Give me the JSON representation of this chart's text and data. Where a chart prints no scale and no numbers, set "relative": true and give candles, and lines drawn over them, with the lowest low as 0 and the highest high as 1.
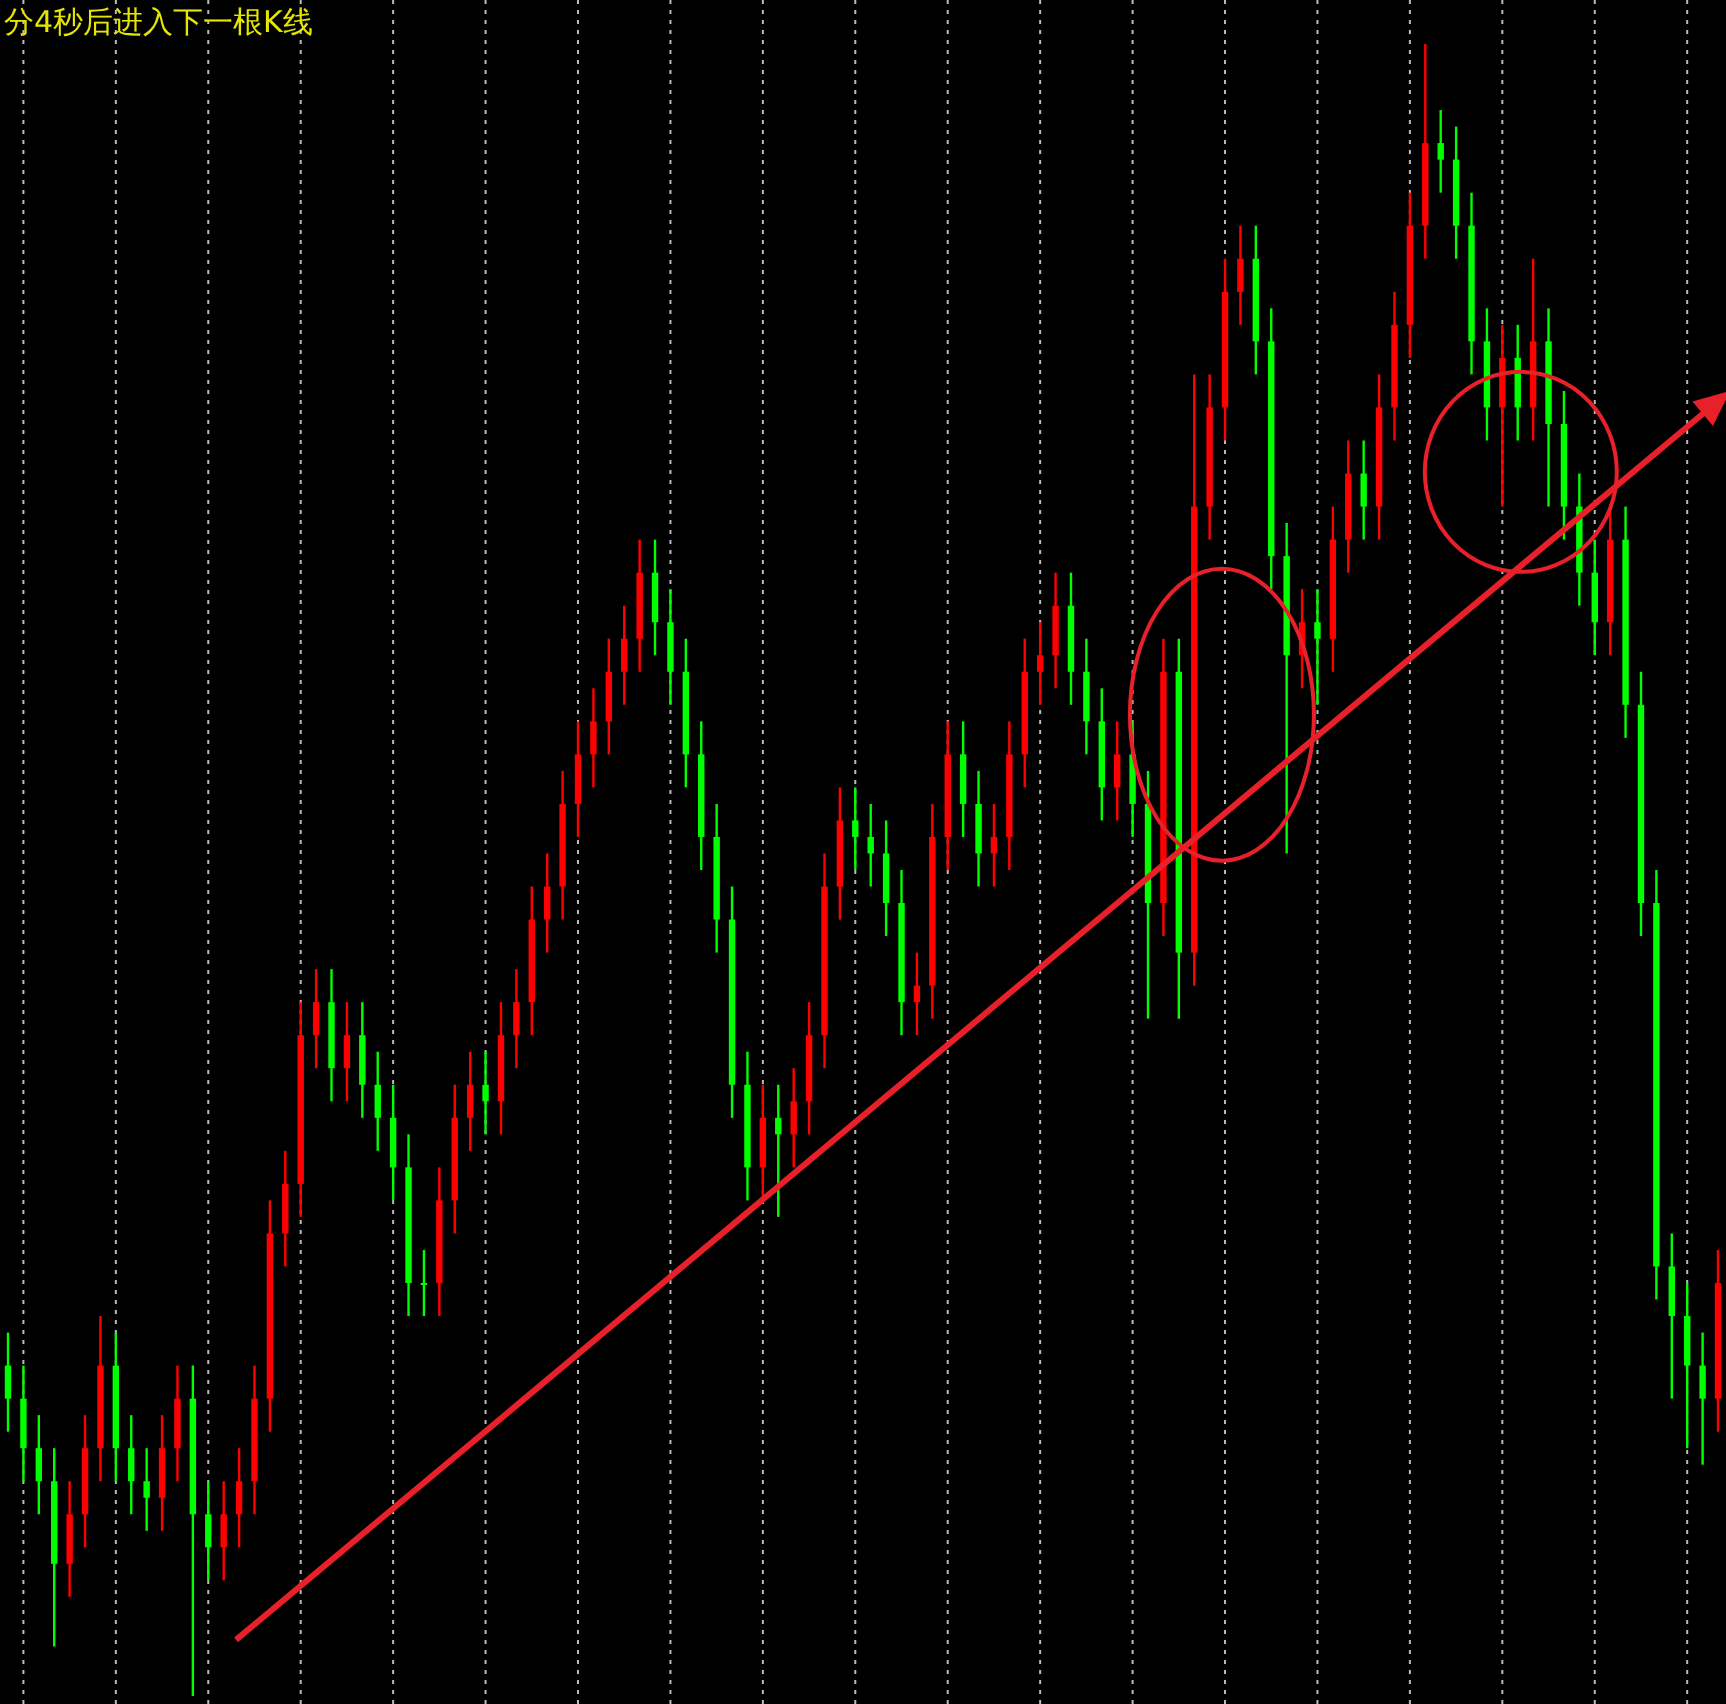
{
  "chart_data": {
    "type": "candlestick",
    "relative": true,
    "grid": "x",
    "annotations": [
      "分4秒后进入下一根K线"
    ],
    "categories": [
      null,
      null,
      null,
      null,
      null,
      null,
      null,
      null,
      null,
      null,
      null,
      null,
      null,
      null,
      null,
      null,
      null,
      null,
      null,
      null,
      null,
      null,
      null,
      null,
      null,
      null,
      null,
      null,
      null,
      null,
      null,
      null,
      null,
      null,
      null,
      null,
      null,
      null,
      null,
      null,
      null,
      null,
      null,
      null,
      null,
      null,
      null,
      null,
      null,
      null,
      null,
      null,
      null,
      null,
      null,
      null,
      null,
      null,
      null,
      null,
      null,
      null,
      null,
      null,
      null,
      null,
      null,
      null,
      null,
      null,
      null,
      null,
      null,
      null,
      null,
      null,
      null,
      null,
      null,
      null,
      null,
      null,
      null,
      null,
      null,
      null,
      null,
      null,
      null,
      null,
      null,
      null,
      null,
      null,
      null,
      null,
      null,
      null,
      null,
      null,
      null,
      null,
      null,
      null,
      null,
      null,
      null,
      null,
      null,
      null,
      null,
      null
    ],
    "ohlc": [
      [
        0.2,
        0.22,
        0.16,
        0.18
      ],
      [
        0.18,
        0.2,
        0.13,
        0.15
      ],
      [
        0.15,
        0.17,
        0.11,
        0.13
      ],
      [
        0.13,
        0.15,
        0.03,
        0.08
      ],
      [
        0.08,
        0.13,
        0.06,
        0.11
      ],
      [
        0.11,
        0.17,
        0.09,
        0.15
      ],
      [
        0.15,
        0.23,
        0.13,
        0.2
      ],
      [
        0.2,
        0.22,
        0.13,
        0.15
      ],
      [
        0.15,
        0.17,
        0.11,
        0.13
      ],
      [
        0.13,
        0.15,
        0.1,
        0.12
      ],
      [
        0.12,
        0.17,
        0.1,
        0.15
      ],
      [
        0.15,
        0.2,
        0.13,
        0.18
      ],
      [
        0.18,
        0.2,
        0.0,
        0.11
      ],
      [
        0.11,
        0.13,
        0.07,
        0.09
      ],
      [
        0.09,
        0.13,
        0.07,
        0.11
      ],
      [
        0.11,
        0.15,
        0.09,
        0.13
      ],
      [
        0.13,
        0.2,
        0.11,
        0.18
      ],
      [
        0.18,
        0.3,
        0.16,
        0.28
      ],
      [
        0.28,
        0.33,
        0.26,
        0.31
      ],
      [
        0.31,
        0.42,
        0.29,
        0.4
      ],
      [
        0.4,
        0.44,
        0.38,
        0.42
      ],
      [
        0.42,
        0.44,
        0.36,
        0.38
      ],
      [
        0.38,
        0.42,
        0.36,
        0.4
      ],
      [
        0.4,
        0.42,
        0.35,
        0.37
      ],
      [
        0.37,
        0.39,
        0.33,
        0.35
      ],
      [
        0.35,
        0.37,
        0.3,
        0.32
      ],
      [
        0.32,
        0.34,
        0.23,
        0.25
      ],
      [
        0.25,
        0.27,
        0.23,
        0.25
      ],
      [
        0.25,
        0.32,
        0.23,
        0.3
      ],
      [
        0.3,
        0.37,
        0.28,
        0.35
      ],
      [
        0.35,
        0.39,
        0.33,
        0.37
      ],
      [
        0.37,
        0.39,
        0.34,
        0.36
      ],
      [
        0.36,
        0.42,
        0.34,
        0.4
      ],
      [
        0.4,
        0.44,
        0.38,
        0.42
      ],
      [
        0.42,
        0.49,
        0.4,
        0.47
      ],
      [
        0.47,
        0.51,
        0.45,
        0.49
      ],
      [
        0.49,
        0.56,
        0.47,
        0.54
      ],
      [
        0.54,
        0.59,
        0.52,
        0.57
      ],
      [
        0.57,
        0.61,
        0.55,
        0.59
      ],
      [
        0.59,
        0.64,
        0.57,
        0.62
      ],
      [
        0.62,
        0.66,
        0.6,
        0.64
      ],
      [
        0.64,
        0.7,
        0.62,
        0.68
      ],
      [
        0.68,
        0.7,
        0.63,
        0.65
      ],
      [
        0.65,
        0.67,
        0.6,
        0.62
      ],
      [
        0.62,
        0.64,
        0.55,
        0.57
      ],
      [
        0.57,
        0.59,
        0.5,
        0.52
      ],
      [
        0.52,
        0.54,
        0.45,
        0.47
      ],
      [
        0.47,
        0.49,
        0.35,
        0.37
      ],
      [
        0.37,
        0.39,
        0.3,
        0.32
      ],
      [
        0.32,
        0.37,
        0.3,
        0.35
      ],
      [
        0.35,
        0.37,
        0.29,
        0.34
      ],
      [
        0.34,
        0.38,
        0.32,
        0.36
      ],
      [
        0.36,
        0.42,
        0.34,
        0.4
      ],
      [
        0.4,
        0.51,
        0.38,
        0.49
      ],
      [
        0.49,
        0.55,
        0.47,
        0.53
      ],
      [
        0.53,
        0.55,
        0.5,
        0.52
      ],
      [
        0.52,
        0.54,
        0.49,
        0.51
      ],
      [
        0.51,
        0.53,
        0.46,
        0.48
      ],
      [
        0.48,
        0.5,
        0.4,
        0.42
      ],
      [
        0.42,
        0.45,
        0.4,
        0.43
      ],
      [
        0.43,
        0.54,
        0.41,
        0.52
      ],
      [
        0.52,
        0.59,
        0.5,
        0.57
      ],
      [
        0.57,
        0.59,
        0.52,
        0.54
      ],
      [
        0.54,
        0.56,
        0.49,
        0.51
      ],
      [
        0.51,
        0.54,
        0.49,
        0.52
      ],
      [
        0.52,
        0.59,
        0.5,
        0.57
      ],
      [
        0.57,
        0.64,
        0.55,
        0.62
      ],
      [
        0.62,
        0.65,
        0.6,
        0.63
      ],
      [
        0.63,
        0.68,
        0.61,
        0.66
      ],
      [
        0.66,
        0.68,
        0.6,
        0.62
      ],
      [
        0.62,
        0.64,
        0.57,
        0.59
      ],
      [
        0.59,
        0.61,
        0.53,
        0.55
      ],
      [
        0.55,
        0.59,
        0.53,
        0.57
      ],
      [
        0.57,
        0.59,
        0.52,
        0.54
      ],
      [
        0.54,
        0.56,
        0.41,
        0.48
      ],
      [
        0.48,
        0.64,
        0.46,
        0.62
      ],
      [
        0.62,
        0.64,
        0.41,
        0.45
      ],
      [
        0.45,
        0.8,
        0.43,
        0.72
      ],
      [
        0.72,
        0.8,
        0.7,
        0.78
      ],
      [
        0.78,
        0.87,
        0.76,
        0.85
      ],
      [
        0.85,
        0.89,
        0.83,
        0.87
      ],
      [
        0.87,
        0.89,
        0.8,
        0.82
      ],
      [
        0.82,
        0.84,
        0.67,
        0.69
      ],
      [
        0.69,
        0.71,
        0.51,
        0.63
      ],
      [
        0.63,
        0.67,
        0.61,
        0.65
      ],
      [
        0.65,
        0.67,
        0.6,
        0.64
      ],
      [
        0.64,
        0.72,
        0.62,
        0.7
      ],
      [
        0.7,
        0.76,
        0.68,
        0.74
      ],
      [
        0.74,
        0.76,
        0.7,
        0.72
      ],
      [
        0.72,
        0.8,
        0.7,
        0.78
      ],
      [
        0.78,
        0.85,
        0.76,
        0.83
      ],
      [
        0.83,
        0.91,
        0.81,
        0.89
      ],
      [
        0.89,
        1.0,
        0.87,
        0.94
      ],
      [
        0.94,
        0.96,
        0.91,
        0.93
      ],
      [
        0.93,
        0.95,
        0.87,
        0.89
      ],
      [
        0.89,
        0.91,
        0.8,
        0.82
      ],
      [
        0.82,
        0.84,
        0.76,
        0.78
      ],
      [
        0.78,
        0.83,
        0.72,
        0.81
      ],
      [
        0.81,
        0.83,
        0.76,
        0.78
      ],
      [
        0.78,
        0.87,
        0.76,
        0.82
      ],
      [
        0.82,
        0.84,
        0.72,
        0.77
      ],
      [
        0.77,
        0.79,
        0.7,
        0.72
      ],
      [
        0.72,
        0.74,
        0.66,
        0.68
      ],
      [
        0.68,
        0.7,
        0.63,
        0.65
      ],
      [
        0.65,
        0.72,
        0.63,
        0.7
      ],
      [
        0.7,
        0.72,
        0.58,
        0.6
      ],
      [
        0.6,
        0.62,
        0.46,
        0.48
      ],
      [
        0.48,
        0.5,
        0.24,
        0.26
      ],
      [
        0.26,
        0.28,
        0.18,
        0.23
      ],
      [
        0.23,
        0.25,
        0.15,
        0.2
      ],
      [
        0.2,
        0.22,
        0.14,
        0.18
      ],
      [
        0.18,
        0.27,
        0.16,
        0.25
      ]
    ],
    "colors": [
      "#00ff00",
      "#00ff00",
      "#00ff00",
      "#00ff00",
      "#ff0000",
      "#ff0000",
      "#ff0000",
      "#00ff00",
      "#00ff00",
      "#00ff00",
      "#ff0000",
      "#ff0000",
      "#00ff00",
      "#00ff00",
      "#ff0000",
      "#ff0000",
      "#ff0000",
      "#ff0000",
      "#ff0000",
      "#ff0000",
      "#ff0000",
      "#00ff00",
      "#ff0000",
      "#00ff00",
      "#00ff00",
      "#00ff00",
      "#00ff00",
      "#00ff00",
      "#ff0000",
      "#ff0000",
      "#ff0000",
      "#00ff00",
      "#ff0000",
      "#ff0000",
      "#ff0000",
      "#ff0000",
      "#ff0000",
      "#ff0000",
      "#ff0000",
      "#ff0000",
      "#ff0000",
      "#ff0000",
      "#00ff00",
      "#00ff00",
      "#00ff00",
      "#00ff00",
      "#00ff00",
      "#00ff00",
      "#00ff00",
      "#ff0000",
      "#00ff00",
      "#ff0000",
      "#ff0000",
      "#ff0000",
      "#ff0000",
      "#00ff00",
      "#00ff00",
      "#00ff00",
      "#00ff00",
      "#ff0000",
      "#ff0000",
      "#ff0000",
      "#00ff00",
      "#00ff00",
      "#ff0000",
      "#ff0000",
      "#ff0000",
      "#ff0000",
      "#ff0000",
      "#00ff00",
      "#00ff00",
      "#00ff00",
      "#ff0000",
      "#00ff00",
      "#00ff00",
      "#ff0000",
      "#00ff00",
      "#ff0000",
      "#ff0000",
      "#ff0000",
      "#ff0000",
      "#00ff00",
      "#00ff00",
      "#00ff00",
      "#ff0000",
      "#00ff00",
      "#ff0000",
      "#ff0000",
      "#00ff00",
      "#ff0000",
      "#ff0000",
      "#ff0000",
      "#ff0000",
      "#00ff00",
      "#00ff00",
      "#00ff00",
      "#00ff00",
      "#ff0000",
      "#00ff00",
      "#ff0000",
      "#00ff00",
      "#00ff00",
      "#00ff00",
      "#00ff00",
      "#ff0000",
      "#00ff00",
      "#00ff00",
      "#00ff00",
      "#00ff00",
      "#00ff00",
      "#00ff00",
      "#ff0000"
    ]
  }
}
